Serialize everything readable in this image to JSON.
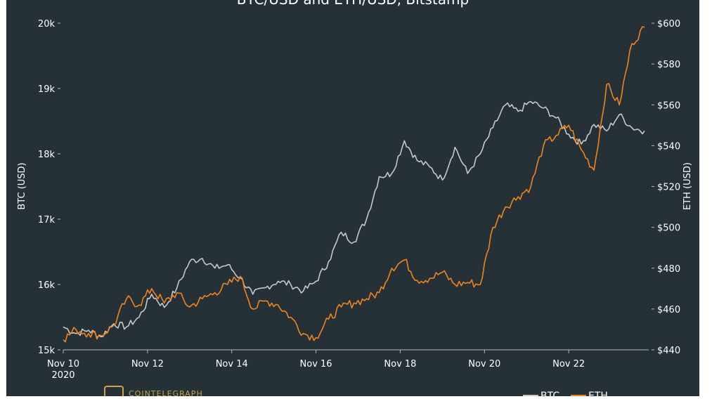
{
  "chart_data": {
    "type": "line",
    "title": "BTC/USD and ETH/USD, Bitstamp",
    "x_tick_labels": [
      "Nov 10",
      "Nov 12",
      "Nov 14",
      "Nov 16",
      "Nov 18",
      "Nov 20",
      "Nov 22"
    ],
    "x_tick_sublabel": "2020",
    "xlim": [
      0,
      13.9
    ],
    "y_left": {
      "label": "BTC (USD)",
      "range": [
        15000,
        20000
      ],
      "tick_values": [
        15000,
        16000,
        17000,
        18000,
        19000,
        20000
      ],
      "tick_labels": [
        "15k",
        "16k",
        "17k",
        "18k",
        "19k",
        "20k"
      ]
    },
    "y_right": {
      "label": "ETH (USD)",
      "range": [
        440,
        600
      ],
      "tick_values": [
        440,
        460,
        480,
        500,
        520,
        540,
        560,
        580,
        600
      ],
      "tick_labels": [
        "$440",
        "$460",
        "$480",
        "$500",
        "$520",
        "$540",
        "$560",
        "$580",
        "$600"
      ]
    },
    "series": [
      {
        "name": "BTC",
        "axis": "left",
        "color": "#c8c8c8",
        "x": [
          0,
          0.3,
          0.6,
          0.9,
          1.2,
          1.5,
          1.8,
          2.1,
          2.4,
          2.7,
          3.0,
          3.3,
          3.6,
          3.9,
          4.2,
          4.5,
          4.8,
          5.1,
          5.4,
          5.7,
          6.0,
          6.3,
          6.6,
          6.9,
          7.2,
          7.5,
          7.8,
          8.1,
          8.4,
          8.7,
          9.0,
          9.3,
          9.6,
          9.9,
          10.2,
          10.5,
          10.8,
          11.1,
          11.4,
          11.7,
          12.0,
          12.3,
          12.6,
          12.9,
          13.2,
          13.5,
          13.8
        ],
        "values": [
          15350,
          15250,
          15300,
          15200,
          15400,
          15350,
          15500,
          15850,
          15650,
          15950,
          16350,
          16400,
          16250,
          16300,
          16100,
          15850,
          15950,
          16050,
          16000,
          15900,
          16050,
          16350,
          16800,
          16650,
          17000,
          17650,
          17700,
          18200,
          17900,
          17800,
          17600,
          18100,
          17700,
          18000,
          18400,
          18750,
          18650,
          18800,
          18700,
          18550,
          18300,
          18150,
          18450,
          18350,
          18600,
          18400,
          18350
        ]
      },
      {
        "name": "ETH",
        "axis": "right",
        "color": "#f0841e",
        "x": [
          0,
          0.3,
          0.6,
          0.9,
          1.2,
          1.5,
          1.8,
          2.1,
          2.4,
          2.7,
          3.0,
          3.3,
          3.6,
          3.9,
          4.2,
          4.5,
          4.8,
          5.1,
          5.4,
          5.7,
          6.0,
          6.3,
          6.6,
          6.9,
          7.2,
          7.5,
          7.8,
          8.1,
          8.4,
          8.7,
          9.0,
          9.3,
          9.6,
          9.9,
          10.2,
          10.5,
          10.8,
          11.1,
          11.4,
          11.7,
          12.0,
          12.3,
          12.6,
          12.9,
          13.2,
          13.5,
          13.8
        ],
        "values": [
          445,
          450,
          448,
          447,
          452,
          465,
          462,
          470,
          463,
          468,
          461,
          465,
          468,
          472,
          476,
          460,
          464,
          462,
          456,
          448,
          446,
          455,
          461,
          463,
          465,
          468,
          480,
          484,
          474,
          475,
          478,
          472,
          473,
          472,
          500,
          510,
          515,
          520,
          540,
          545,
          550,
          538,
          528,
          570,
          560,
          590,
          598
        ]
      }
    ],
    "legend": {
      "position": "bottom-right",
      "entries": [
        "BTC",
        "ETH"
      ]
    },
    "grid": false
  },
  "branding": {
    "logo_text": "COINTELEGRAPH"
  },
  "colors": {
    "background": "#253037",
    "btc": "#c8c8c8",
    "eth": "#f0841e",
    "text": "#ffffff",
    "axis": "#b0b8bd"
  }
}
